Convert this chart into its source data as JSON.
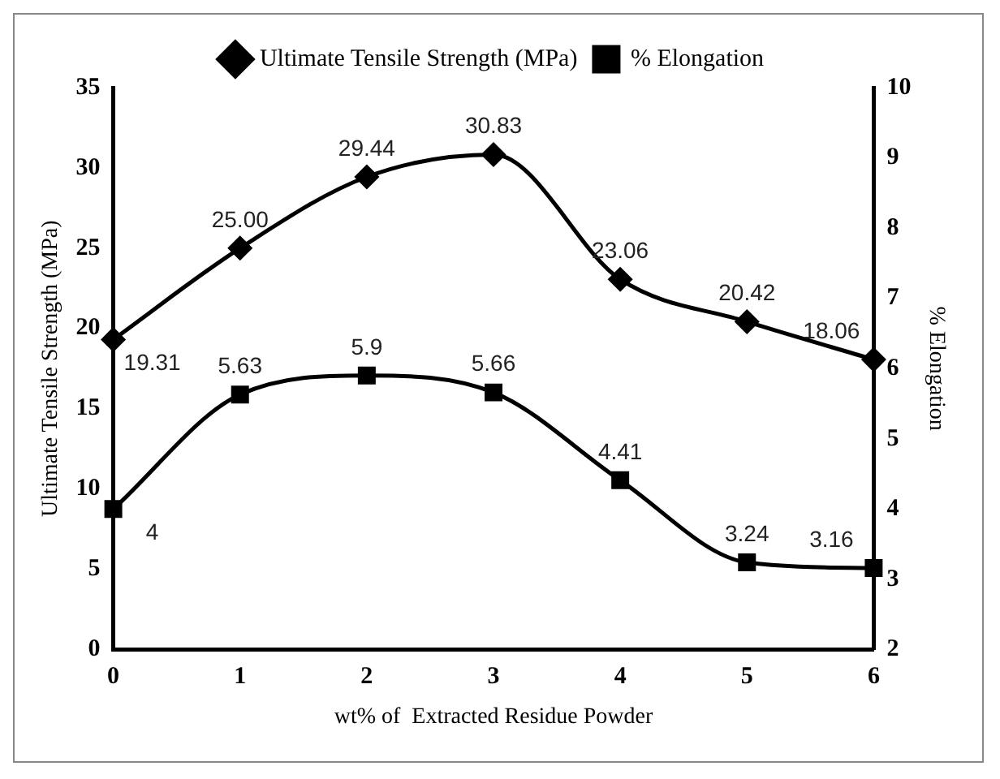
{
  "chart_data": {
    "type": "line",
    "xlabel": "wt% of  Extracted Residue Powder",
    "ylabel": "Ultimate Tensile Strength (MPa)",
    "y2label": "% Elongation",
    "categories": [
      "0",
      "1",
      "2",
      "3",
      "4",
      "5",
      "6"
    ],
    "series": [
      {
        "name": "Ultimate Tensile Strength (MPa)",
        "color": "#000000",
        "marker": "diamond",
        "values": [
          19.31,
          25.0,
          29.44,
          30.83,
          23.06,
          20.42,
          18.06
        ],
        "value_labels": [
          "19.31",
          "25.00",
          "29.44",
          "30.83",
          "23.06",
          "20.42",
          "18.06"
        ]
      },
      {
        "name": "% Elongation",
        "color": "#000000",
        "marker": "square",
        "axis": "y2",
        "values": [
          4,
          5.63,
          5.9,
          5.66,
          4.41,
          3.24,
          3.16
        ],
        "value_labels": [
          "4",
          "5.63",
          "5.9",
          "5.66",
          "4.41",
          "3.24",
          "3.16"
        ]
      }
    ],
    "ylim": [
      0,
      35
    ],
    "yticks": [
      0,
      5,
      10,
      15,
      20,
      25,
      30,
      35
    ],
    "y2lim": [
      2,
      10
    ],
    "y2ticks": [
      2,
      3,
      4,
      5,
      6,
      7,
      8,
      9,
      10
    ],
    "grid": false,
    "legend": "top"
  }
}
